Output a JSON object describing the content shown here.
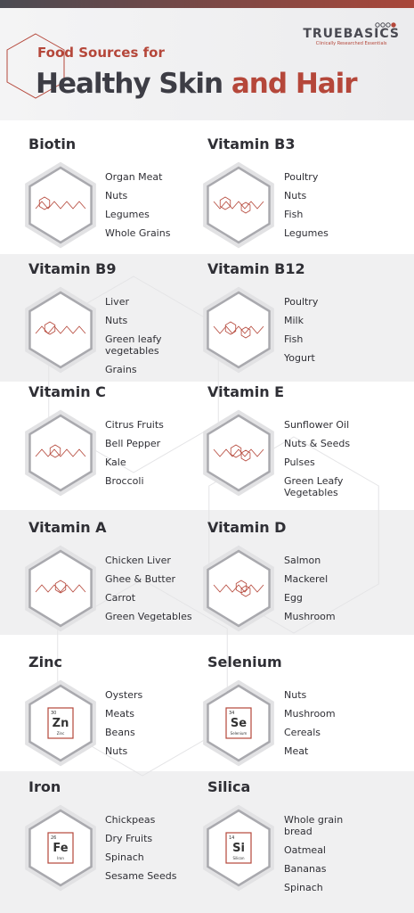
{
  "header": {
    "subtitle": "Food Sources for",
    "title_part1": "Healthy Skin",
    "title_part2": "and Hair"
  },
  "logo": {
    "name": "TRUEBASICS",
    "tagline": "Clinically Researched Essentials"
  },
  "nutrients": [
    {
      "name": "Biotin",
      "foods": [
        "Organ Meat",
        "Nuts",
        "Legumes",
        "Whole Grains"
      ]
    },
    {
      "name": "Vitamin B3",
      "foods": [
        "Poultry",
        "Nuts",
        "Fish",
        "Legumes"
      ]
    },
    {
      "name": "Vitamin B9",
      "foods": [
        "Liver",
        "Nuts",
        "Green leafy vegetables",
        "Grains"
      ]
    },
    {
      "name": "Vitamin B12",
      "foods": [
        "Poultry",
        "Milk",
        "Fish",
        "Yogurt"
      ]
    },
    {
      "name": "Vitamin C",
      "foods": [
        "Citrus Fruits",
        "Bell Pepper",
        "Kale",
        "Broccoli"
      ]
    },
    {
      "name": "Vitamin E",
      "foods": [
        "Sunflower Oil",
        "Nuts & Seeds",
        "Pulses",
        "Green Leafy Vegetables"
      ]
    },
    {
      "name": "Vitamin A",
      "foods": [
        "Chicken Liver",
        "Ghee & Butter",
        "Carrot",
        "Green Vegetables"
      ]
    },
    {
      "name": "Vitamin D",
      "foods": [
        "Salmon",
        "Mackerel",
        "Egg",
        "Mushroom"
      ]
    },
    {
      "name": "Zinc",
      "foods": [
        "Oysters",
        "Meats",
        "Beans",
        "Nuts"
      ],
      "element": {
        "number": "30",
        "symbol": "Zn",
        "label": "Zinc"
      }
    },
    {
      "name": "Selenium",
      "foods": [
        "Nuts",
        "Mushroom",
        "Cereals",
        "Meat"
      ],
      "element": {
        "number": "34",
        "symbol": "Se",
        "label": "Selenium"
      }
    },
    {
      "name": "Iron",
      "foods": [
        "Chickpeas",
        "Dry Fruits",
        "Spinach",
        "Sesame Seeds"
      ],
      "element": {
        "number": "26",
        "symbol": "Fe",
        "label": "Iron"
      }
    },
    {
      "name": "Silica",
      "foods": [
        "Whole grain bread",
        "Oatmeal",
        "Bananas",
        "Spinach"
      ],
      "element": {
        "number": "14",
        "symbol": "Si",
        "label": "Silicon"
      }
    }
  ]
}
